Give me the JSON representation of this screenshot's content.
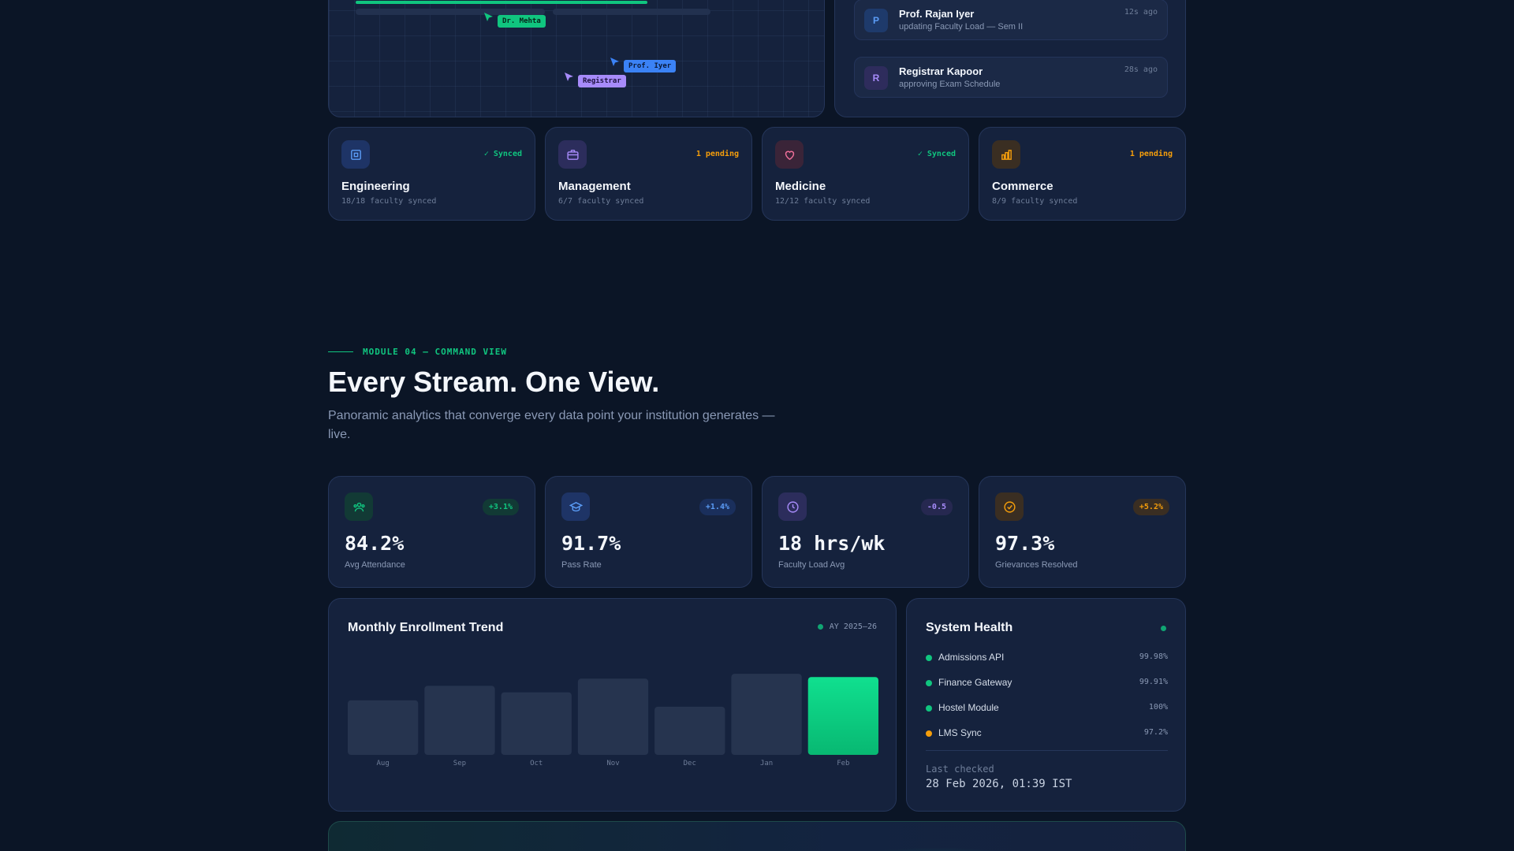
{
  "board": {
    "cursors": [
      {
        "label": "Dr. Mehta",
        "color": "#10c57f",
        "text_color": "#06241a"
      },
      {
        "label": "Prof. Iyer",
        "color": "#3b82f6",
        "text_color": "#0a1a3a"
      },
      {
        "label": "Registrar",
        "color": "#a78bfa",
        "text_color": "#1e1240"
      }
    ]
  },
  "activity": [
    {
      "initial": "P",
      "name": "Prof. Rajan Iyer",
      "action": "updating Faculty Load — Sem II",
      "time": "12s ago",
      "bg": "#1e3a6b",
      "fg": "#5b9cf6"
    },
    {
      "initial": "R",
      "name": "Registrar Kapoor",
      "action": "approving Exam Schedule",
      "time": "28s ago",
      "bg": "#2e2c5c",
      "fg": "#a78bfa"
    }
  ],
  "departments": [
    {
      "icon": "cpu-icon",
      "title": "Engineering",
      "sub": "18/18 faculty synced",
      "status": "✓ Synced",
      "status_color": "#10c57f",
      "icon_bg": "#1e3466",
      "icon_color": "#5b9cf6"
    },
    {
      "icon": "briefcase-icon",
      "title": "Management",
      "sub": "6/7 faculty synced",
      "status": "1 pending",
      "status_color": "#f59e0b",
      "icon_bg": "#2c2d5c",
      "icon_color": "#a78bfa"
    },
    {
      "icon": "heart-icon",
      "title": "Medicine",
      "sub": "12/12 faculty synced",
      "status": "✓ Synced",
      "status_color": "#10c57f",
      "icon_bg": "#3a2438",
      "icon_color": "#f0709a"
    },
    {
      "icon": "bar-chart-icon",
      "title": "Commerce",
      "sub": "8/9 faculty synced",
      "status": "1 pending",
      "status_color": "#f59e0b",
      "icon_bg": "#3a2e22",
      "icon_color": "#f59e0b"
    }
  ],
  "section": {
    "eyebrow": "MODULE 04 — COMMAND VIEW",
    "headline": "Every Stream. One View.",
    "subhead": "Panoramic analytics that converge every data point your institution generates — live."
  },
  "kpis": [
    {
      "icon": "users-icon",
      "value": "84.2%",
      "label": "Avg Attendance",
      "delta": "+3.1%",
      "delta_color": "#10c57f",
      "delta_bg": "#123a35",
      "icon_bg": "#123a35",
      "icon_color": "#10c57f"
    },
    {
      "icon": "graduation-cap-icon",
      "value": "91.7%",
      "label": "Pass Rate",
      "delta": "+1.4%",
      "delta_color": "#5b9cf6",
      "delta_bg": "#1a2f5c",
      "icon_bg": "#1e3466",
      "icon_color": "#5b9cf6"
    },
    {
      "icon": "clock-icon",
      "value": "18 hrs/wk",
      "label": "Faculty Load Avg",
      "delta": "-0.5",
      "delta_color": "#a78bfa",
      "delta_bg": "#262850",
      "icon_bg": "#2c2d5c",
      "icon_color": "#a78bfa"
    },
    {
      "icon": "check-circle-icon",
      "value": "97.3%",
      "label": "Grievances Resolved",
      "delta": "+5.2%",
      "delta_color": "#f59e0b",
      "delta_bg": "#3a2e22",
      "icon_bg": "#3a2e22",
      "icon_color": "#f59e0b"
    }
  ],
  "enrollment": {
    "title": "Monthly Enrollment Trend",
    "period": "AY 2025–26"
  },
  "chart_data": {
    "type": "bar",
    "title": "Monthly Enrollment Trend",
    "categories": [
      "Aug",
      "Sep",
      "Oct",
      "Nov",
      "Dec",
      "Jan",
      "Feb"
    ],
    "values": [
      68,
      86,
      78,
      95,
      60,
      101,
      97
    ],
    "ylim": [
      0,
      110
    ],
    "highlight_index": 6,
    "grid": false
  },
  "health": {
    "title": "System Health",
    "services": [
      {
        "name": "Admissions API",
        "uptime": "99.98%",
        "color": "#10c57f"
      },
      {
        "name": "Finance Gateway",
        "uptime": "99.91%",
        "color": "#10c57f"
      },
      {
        "name": "Hostel Module",
        "uptime": "100%",
        "color": "#10c57f"
      },
      {
        "name": "LMS Sync",
        "uptime": "97.2%",
        "color": "#f59e0b"
      }
    ],
    "last_checked_label": "Last checked",
    "last_checked_value": "28 Feb 2026, 01:39 IST"
  }
}
